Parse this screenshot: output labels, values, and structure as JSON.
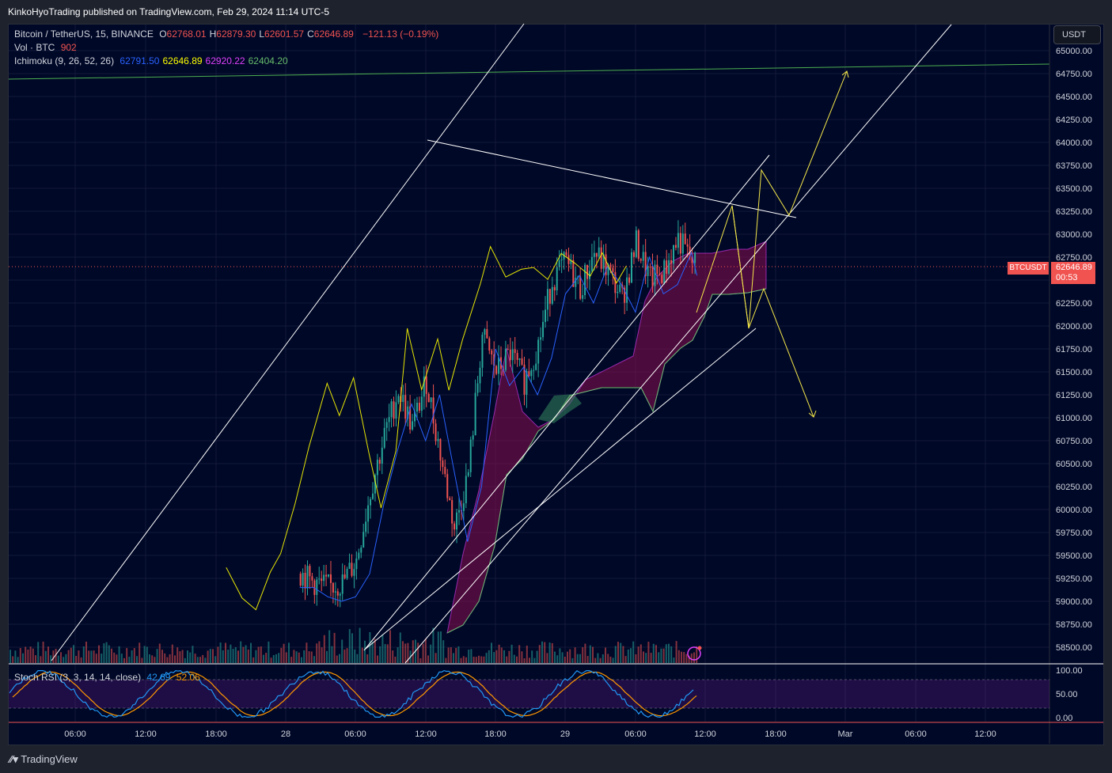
{
  "header": {
    "publisher": "KinkoHyoTrading published on TradingView.com, Feb 29, 2024 11:14 UTC-5"
  },
  "legend": {
    "symbol": "Bitcoin / TetherUS, 15, BINANCE",
    "ohlc": [
      {
        "k": "O",
        "v": "62768.01"
      },
      {
        "k": "H",
        "v": "62879.30"
      },
      {
        "k": "L",
        "v": "62601.57"
      },
      {
        "k": "C",
        "v": "62646.89"
      }
    ],
    "change": "−121.13 (−0.19%)",
    "vol_label": "Vol · BTC",
    "vol_value": "902",
    "ichimoku_label": "Ichimoku (9, 26, 52, 26)",
    "ichimoku_values": [
      {
        "v": "62791.50",
        "color": "#2962ff"
      },
      {
        "v": "62646.89",
        "color": "#ffff00"
      },
      {
        "v": "62920.22",
        "color": "#e040fb"
      },
      {
        "v": "62404.20",
        "color": "#66bb6a"
      }
    ],
    "stoch_label": "Stoch RSI (3, 3, 14, 14, close)",
    "stoch_k": "42.69",
    "stoch_d": "52.06"
  },
  "currency_button": "USDT",
  "price_tag": {
    "symbol": "BTCUSDT",
    "price": "62646.89",
    "countdown": "00:53"
  },
  "footer": {
    "brand": "TradingView"
  },
  "colors": {
    "up": "#26a69a",
    "down": "#ef5350",
    "tenkan": "#2962ff",
    "chikou": "#ffff00",
    "lines": "#ffffff",
    "projection": "#f5e84a",
    "resistance": "#4caf50"
  },
  "chart_data": {
    "type": "line",
    "title": "Bitcoin / TetherUS, 15, BINANCE",
    "y_ticks": [
      "65000.00",
      "64750.00",
      "64500.00",
      "64250.00",
      "64000.00",
      "63750.00",
      "63500.00",
      "63250.00",
      "63000.00",
      "62750.00",
      "62500.00",
      "62250.00",
      "62000.00",
      "61750.00",
      "61500.00",
      "61250.00",
      "61000.00",
      "60750.00",
      "60500.00",
      "60250.00",
      "60000.00",
      "59750.00",
      "59500.00",
      "59250.00",
      "59000.00",
      "58750.00",
      "58500.00"
    ],
    "x_ticks": [
      "06:00",
      "12:00",
      "18:00",
      "28",
      "06:00",
      "12:00",
      "18:00",
      "29",
      "06:00",
      "12:00",
      "18:00",
      "Mar",
      "06:00",
      "12:00"
    ],
    "stoch_ticks": [
      "100.00",
      "50.00",
      "0.00"
    ],
    "ylim": [
      58400,
      65100
    ],
    "price_series": {
      "name": "BTCUSDT close",
      "x": [
        28.05,
        28.1,
        28.15,
        28.2,
        28.25,
        28.3,
        28.35,
        28.4,
        28.45,
        28.5,
        28.55,
        28.6,
        28.65,
        28.7,
        28.75,
        28.8,
        28.85,
        28.9,
        28.95,
        29.0,
        29.05,
        29.1,
        29.15,
        29.2,
        29.25,
        29.3,
        29.35,
        29.4,
        29.45,
        29.47
      ],
      "values": [
        59300,
        59200,
        59150,
        59200,
        59450,
        60200,
        60800,
        61300,
        60900,
        61400,
        60600,
        59800,
        60400,
        61900,
        61500,
        61700,
        61400,
        61800,
        62500,
        62700,
        62400,
        62800,
        62600,
        62300,
        62900,
        62500,
        62600,
        62950,
        62700,
        62646.89
      ]
    },
    "current_price": 62646.89,
    "resistance_level": 64800,
    "projections": [
      {
        "name": "bullish path",
        "points": [
          [
            29.45,
            62250
          ],
          [
            29.6,
            63300
          ],
          [
            29.7,
            62000
          ],
          [
            29.77,
            63700
          ],
          [
            29.87,
            63200
          ],
          [
            30.0,
            64800
          ]
        ]
      },
      {
        "name": "bearish path",
        "points": [
          [
            29.62,
            63300
          ],
          [
            29.7,
            62000
          ],
          [
            29.78,
            62400
          ],
          [
            29.95,
            61000
          ]
        ]
      }
    ],
    "stoch_rsi": {
      "k": 42.69,
      "d": 52.06,
      "ylim": [
        0,
        100
      ]
    }
  }
}
